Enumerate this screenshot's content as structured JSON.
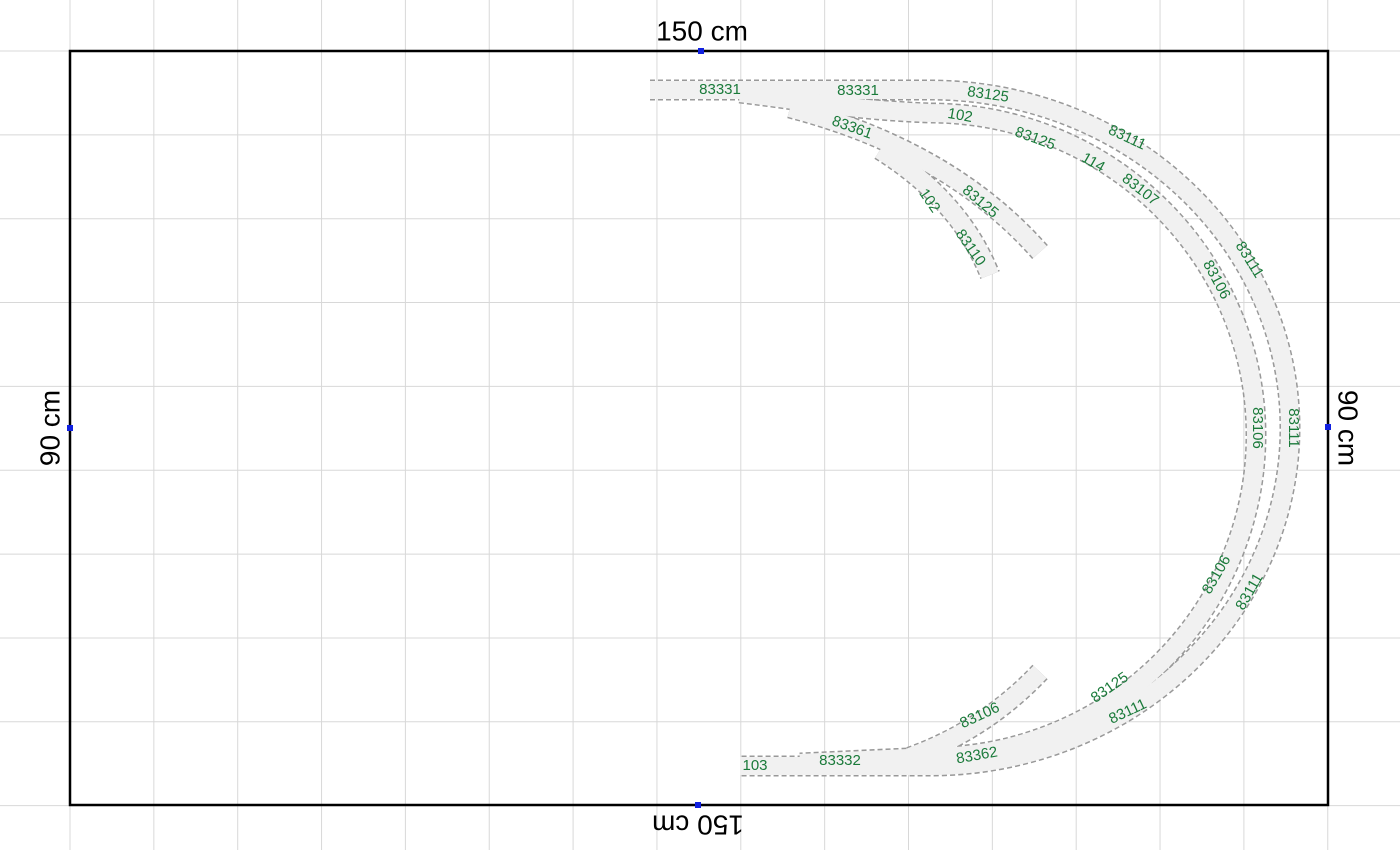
{
  "dimensions": {
    "top": "150 cm",
    "bottom": "150 cm",
    "left": "90 cm",
    "right": "90 cm"
  },
  "tracks": [
    {
      "label": "83331"
    },
    {
      "label": "83331"
    },
    {
      "label": "83125"
    },
    {
      "label": "102"
    },
    {
      "label": "83361"
    },
    {
      "label": "83125"
    },
    {
      "label": "83111"
    },
    {
      "label": "114"
    },
    {
      "label": "83107"
    },
    {
      "label": "102"
    },
    {
      "label": "83125"
    },
    {
      "label": "83110"
    },
    {
      "label": "83111"
    },
    {
      "label": "83106"
    },
    {
      "label": "83106"
    },
    {
      "label": "83111"
    },
    {
      "label": "83106"
    },
    {
      "label": "83111"
    },
    {
      "label": "83106"
    },
    {
      "label": "83125"
    },
    {
      "label": "83111"
    },
    {
      "label": "103"
    },
    {
      "label": "83332"
    },
    {
      "label": "83362"
    }
  ]
}
